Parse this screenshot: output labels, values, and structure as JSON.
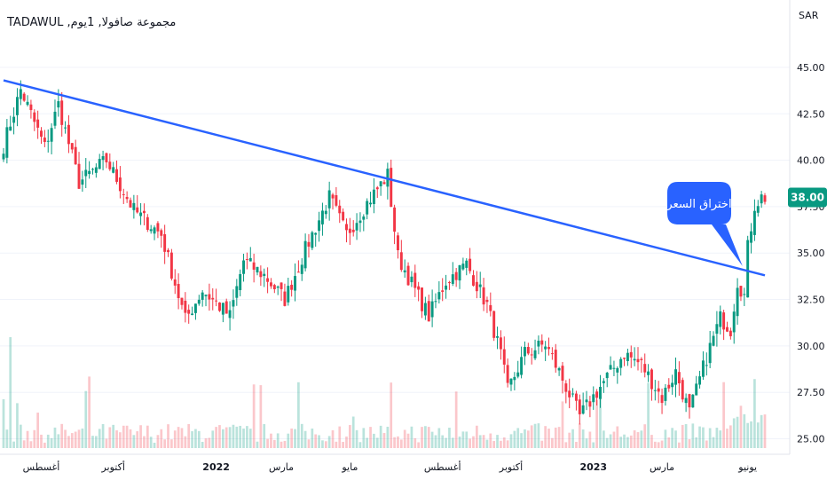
{
  "header": {
    "title": "مجموعة صافولا, 1يوم, TADAWUL",
    "currency": "SAR"
  },
  "price_badge": {
    "value": "38.00",
    "color": "#089981"
  },
  "callout": {
    "text": "اختراق السعر",
    "color": "#2962ff"
  },
  "colors": {
    "up": "#089981",
    "down": "#f23645",
    "trendline": "#2962ff",
    "grid": "#f0f3fa"
  },
  "chart_data": {
    "type": "candlestick",
    "ylim": [
      24.5,
      46
    ],
    "yticks": [
      25.0,
      27.5,
      30.0,
      32.5,
      35.0,
      37.5,
      40.0,
      42.5,
      45.0
    ],
    "ytick_labels": [
      "25.00",
      "27.50",
      "30.00",
      "32.50",
      "35.00",
      "37.50",
      "40.00",
      "42.50",
      "45.00"
    ],
    "xtick_labels": [
      "أغسطس",
      "أكتوبر",
      "2022",
      "مارس",
      "مايو",
      "أغسطس",
      "أكتوبر",
      "2023",
      "مارس",
      "يونيو"
    ],
    "xtick_bars": [
      11,
      32,
      62,
      81,
      101,
      128,
      148,
      172,
      192,
      217
    ],
    "trendline": {
      "from": {
        "bar": 0,
        "price": 44.3
      },
      "to": {
        "bar": 222,
        "price": 33.8
      }
    },
    "breakout_bar": 216,
    "key_points": [
      {
        "bar": 0,
        "close": 40.8
      },
      {
        "bar": 5,
        "close": 43.8
      },
      {
        "bar": 12,
        "close": 40.7
      },
      {
        "bar": 16,
        "close": 43.0
      },
      {
        "bar": 22,
        "close": 38.8
      },
      {
        "bar": 30,
        "close": 40.0
      },
      {
        "bar": 38,
        "close": 37.3
      },
      {
        "bar": 46,
        "close": 36.0
      },
      {
        "bar": 53,
        "close": 31.4
      },
      {
        "bar": 58,
        "close": 33.0
      },
      {
        "bar": 66,
        "close": 31.6
      },
      {
        "bar": 70,
        "close": 34.6
      },
      {
        "bar": 76,
        "close": 33.8
      },
      {
        "bar": 82,
        "close": 32.5
      },
      {
        "bar": 88,
        "close": 35.2
      },
      {
        "bar": 95,
        "close": 38.0
      },
      {
        "bar": 100,
        "close": 36.0
      },
      {
        "bar": 106,
        "close": 37.7
      },
      {
        "bar": 112,
        "close": 39.2
      },
      {
        "bar": 115,
        "close": 34.8
      },
      {
        "bar": 120,
        "close": 33.0
      },
      {
        "bar": 124,
        "close": 31.6
      },
      {
        "bar": 129,
        "close": 33.5
      },
      {
        "bar": 135,
        "close": 34.4
      },
      {
        "bar": 141,
        "close": 32.2
      },
      {
        "bar": 145,
        "close": 29.5
      },
      {
        "bar": 147,
        "close": 27.6
      },
      {
        "bar": 152,
        "close": 29.6
      },
      {
        "bar": 158,
        "close": 30.1
      },
      {
        "bar": 162,
        "close": 28.6
      },
      {
        "bar": 168,
        "close": 26.2
      },
      {
        "bar": 174,
        "close": 27.8
      },
      {
        "bar": 181,
        "close": 29.6
      },
      {
        "bar": 186,
        "close": 29.0
      },
      {
        "bar": 192,
        "close": 27.2
      },
      {
        "bar": 196,
        "close": 28.6
      },
      {
        "bar": 200,
        "close": 26.4
      },
      {
        "bar": 205,
        "close": 29.4
      },
      {
        "bar": 209,
        "close": 31.5
      },
      {
        "bar": 212,
        "close": 30.9
      },
      {
        "bar": 214,
        "close": 33.5
      },
      {
        "bar": 216,
        "close": 32.7
      },
      {
        "bar": 217,
        "close": 35.3
      },
      {
        "bar": 219,
        "close": 37.6
      },
      {
        "bar": 221,
        "close": 38.0
      }
    ]
  }
}
